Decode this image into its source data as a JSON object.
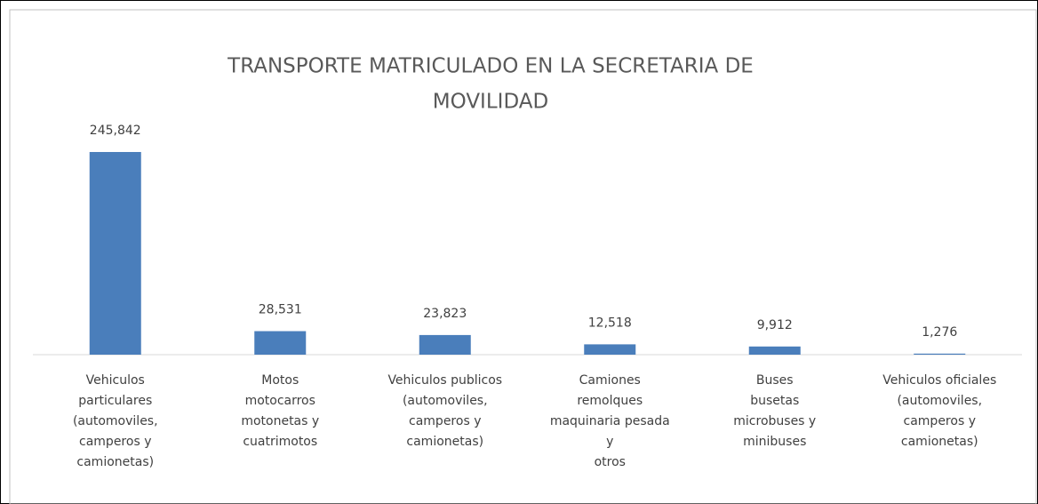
{
  "chart_data": {
    "type": "bar",
    "title": [
      "TRANSPORTE MATRICULADO EN LA SECRETARIA DE",
      "MOVILIDAD"
    ],
    "categories": [
      [
        "Vehiculos",
        "particulares",
        "(automoviles,",
        "camperos y",
        "camionetas)"
      ],
      [
        "Motos",
        "motocarros",
        "motonetas y",
        "cuatrimotos"
      ],
      [
        "Vehiculos publicos",
        "(automoviles,",
        "camperos y",
        "camionetas)"
      ],
      [
        "Camiones",
        "remolques",
        "maquinaria pesada",
        "y",
        "otros"
      ],
      [
        "Buses",
        "busetas",
        "microbuses y",
        "minibuses"
      ],
      [
        "Vehiculos oficiales",
        "(automoviles,",
        "camperos y",
        "camionetas)"
      ]
    ],
    "values": [
      245842,
      28531,
      23823,
      12518,
      9912,
      1276
    ],
    "value_labels": [
      "245,842",
      "28,531",
      "23,823",
      "12,518",
      "9,912",
      "1,276"
    ],
    "color": "#4a7ebb"
  }
}
